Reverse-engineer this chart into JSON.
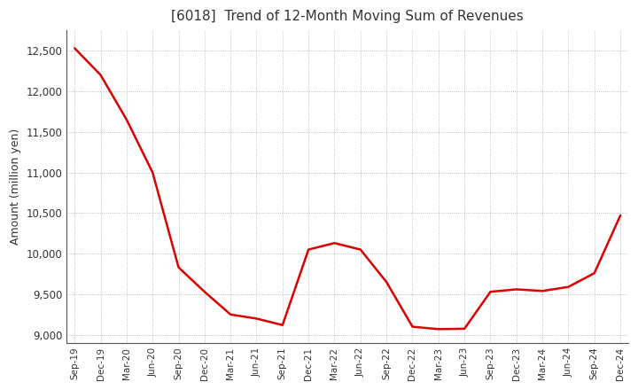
{
  "title": "[6018]  Trend of 12-Month Moving Sum of Revenues",
  "ylabel": "Amount (million yen)",
  "line_color": "#dd0000",
  "background_color": "#ffffff",
  "grid_color": "#aaaaaa",
  "ylim": [
    8900,
    12750
  ],
  "yticks": [
    9000,
    9500,
    10000,
    10500,
    11000,
    11500,
    12000,
    12500
  ],
  "x_labels": [
    "Sep-19",
    "Dec-19",
    "Mar-20",
    "Jun-20",
    "Sep-20",
    "Dec-20",
    "Mar-21",
    "Jun-21",
    "Sep-21",
    "Dec-21",
    "Mar-22",
    "Jun-22",
    "Sep-22",
    "Dec-22",
    "Mar-23",
    "Jun-23",
    "Sep-23",
    "Dec-23",
    "Mar-24",
    "Jun-24",
    "Sep-24",
    "Dec-24"
  ],
  "values": [
    12530,
    12200,
    11650,
    11000,
    9830,
    9530,
    9250,
    9200,
    9120,
    10050,
    10130,
    10050,
    9650,
    9100,
    9070,
    9075,
    9530,
    9560,
    9540,
    9590,
    9760,
    10470
  ]
}
